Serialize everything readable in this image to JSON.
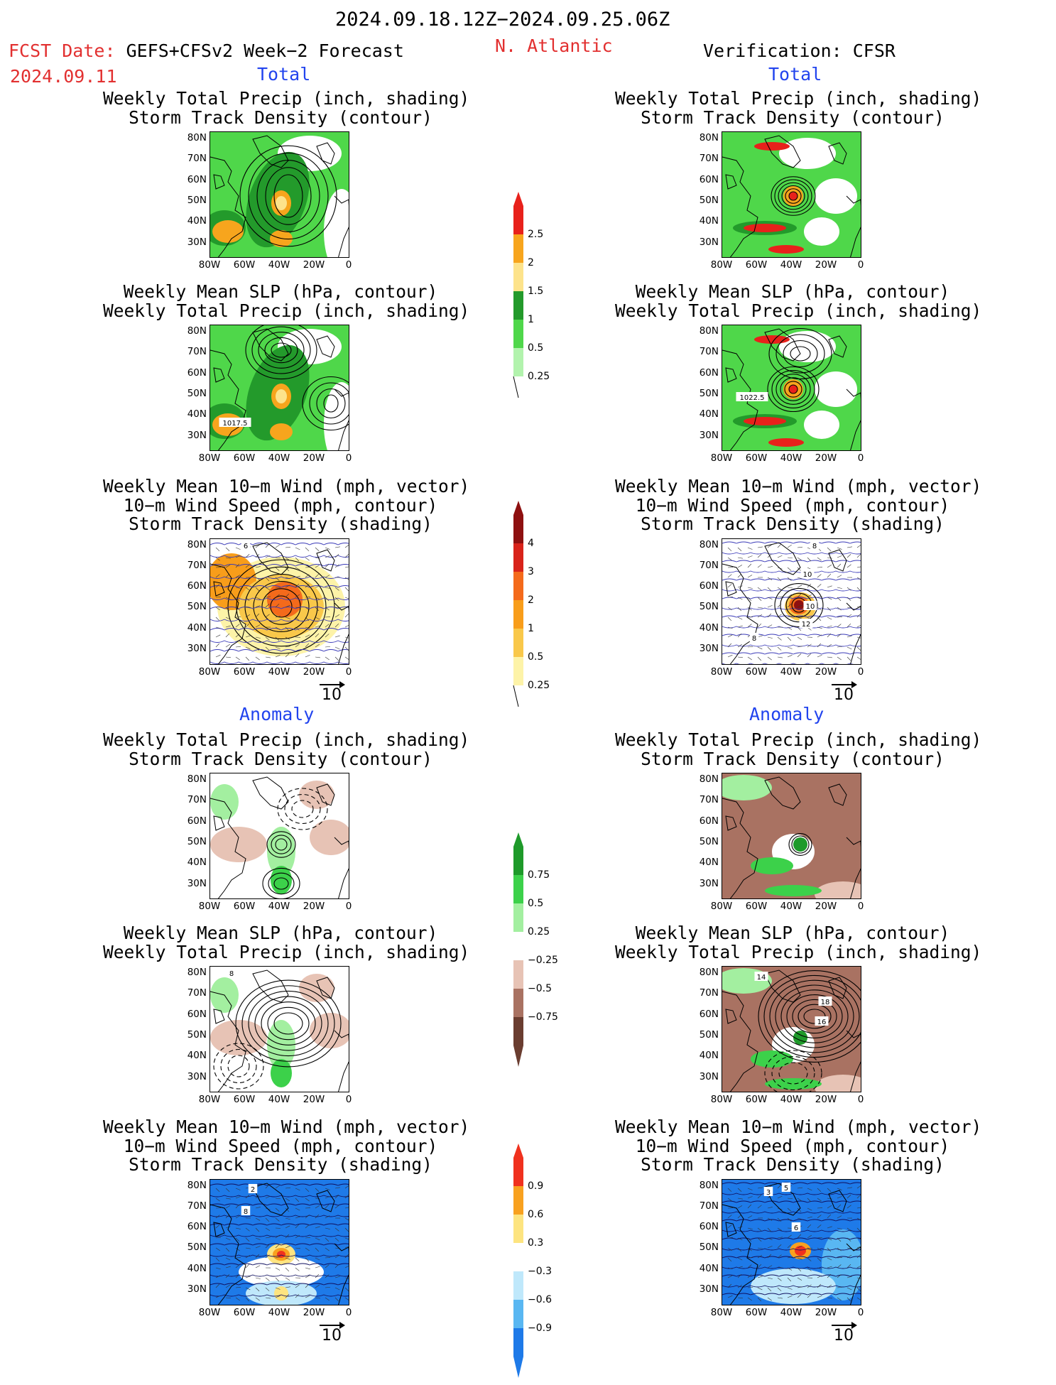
{
  "header": {
    "date_range": "2024.09.18.12Z−2024.09.25.06Z",
    "fcst_label": "FCST Date:",
    "fcst_model": "GEFS+CFSv2 Week−2 Forecast",
    "fcst_date": "2024.09.11",
    "region": "N. Atlantic",
    "verification": "Verification: CFSR"
  },
  "sections": {
    "total_left": "Total",
    "total_right": "Total",
    "anomaly_left": "Anomaly",
    "anomaly_right": "Anomaly"
  },
  "panel_titles": {
    "precip_track": "Weekly Total Precip (inch, shading)\nStorm Track Density (contour)",
    "slp_precip": "Weekly Mean SLP (hPa, contour)\nWeekly Total Precip (inch, shading)",
    "wind_track": "Weekly Mean 10−m Wind (mph, vector)\n10−m Wind Speed (mph, contour)\nStorm Track Density (shading)"
  },
  "axes": {
    "lat_labels": [
      "80N",
      "70N",
      "60N",
      "50N",
      "40N",
      "30N"
    ],
    "lon_labels": [
      "80W",
      "60W",
      "40W",
      "20W",
      "0"
    ]
  },
  "vector_scale_label": "10",
  "contour_labels": {
    "slp_left": "1017.5",
    "slp_right": "1022.5",
    "wind_right_a": "10",
    "wind_right_b": "10",
    "wind_right_c": "12",
    "wind_right_d": "8",
    "wind_right_e": "8",
    "wind_left_a": "6",
    "slpanom_left": "8",
    "slpanom_right_a": "14",
    "slpanom_right_b": "18",
    "slpanom_right_c": "16",
    "windanom_left_a": "2",
    "windanom_left_b": "8",
    "windanom_right_a": "3",
    "windanom_right_b": "5",
    "windanom_right_c": "6"
  },
  "colorbars": {
    "precip_total": {
      "labels": [
        "2.5",
        "2",
        "1.5",
        "1",
        "0.5",
        "0.25"
      ],
      "colors": [
        "#e8211b",
        "#f7a51d",
        "#fde38b",
        "#239a2b",
        "#4fd74a",
        "#b2f3ad"
      ]
    },
    "track_total": {
      "labels": [
        "4",
        "3",
        "2",
        "1",
        "0.5",
        "0.25"
      ],
      "colors": [
        "#8e1010",
        "#d8231a",
        "#f46a1b",
        "#f89d1a",
        "#f9c84a",
        "#fdf3a8"
      ]
    },
    "precip_anom": {
      "labels": [
        "0.75",
        "0.5",
        "0.25",
        "−0.25",
        "−0.5",
        "−0.75"
      ],
      "colors": [
        "#1e9a2a",
        "#3cd14a",
        "#a3efa0",
        "#ffffff",
        "#e7c3b5",
        "#a97262",
        "#6a3d30"
      ]
    },
    "track_anom": {
      "labels": [
        "0.9",
        "0.6",
        "0.3",
        "−0.3",
        "−0.6",
        "−0.9"
      ],
      "colors": [
        "#f0311e",
        "#f8a11f",
        "#fde480",
        "#ffffff",
        "#bfe8fb",
        "#59b7f2",
        "#1e7ae8"
      ]
    }
  }
}
